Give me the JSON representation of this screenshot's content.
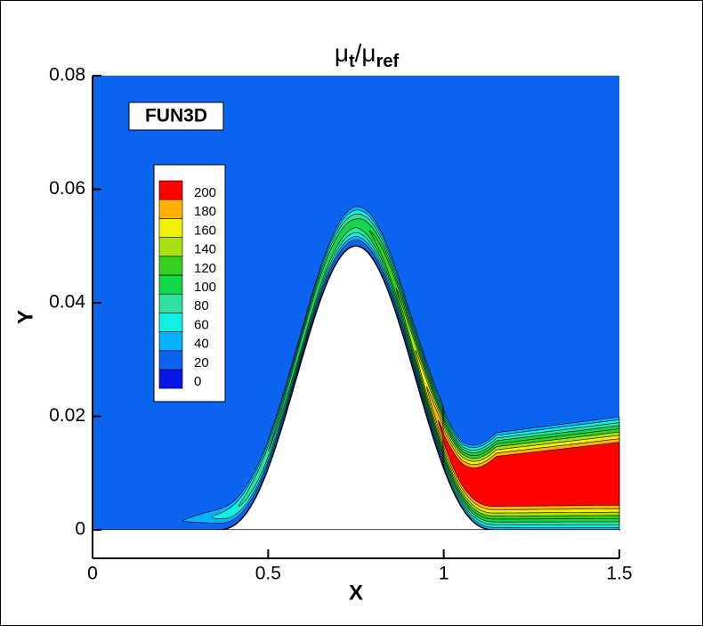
{
  "chart_data": {
    "type": "contour",
    "title": {
      "text1": "μ",
      "sub1": "t",
      "text2": "/μ",
      "sub2": "ref"
    },
    "xlabel": "X",
    "ylabel": "Y",
    "annotation": "FUN3D",
    "xlim": [
      0,
      1.5
    ],
    "xticks": [
      0,
      0.5,
      1,
      1.5
    ],
    "ylim": [
      -0.005,
      0.08
    ],
    "yticks": [
      0,
      0.02,
      0.04,
      0.06,
      0.08
    ],
    "levels": [
      0,
      20,
      40,
      60,
      80,
      100,
      120,
      140,
      160,
      180,
      200
    ],
    "level_colors": [
      "#0a14e6",
      "#0a64f0",
      "#00b2ff",
      "#10f0e0",
      "#30e0a0",
      "#10d84a",
      "#38d020",
      "#a8e010",
      "#f0f000",
      "#ffb000",
      "#ff5a00"
    ],
    "top_color": "#ff0000"
  }
}
